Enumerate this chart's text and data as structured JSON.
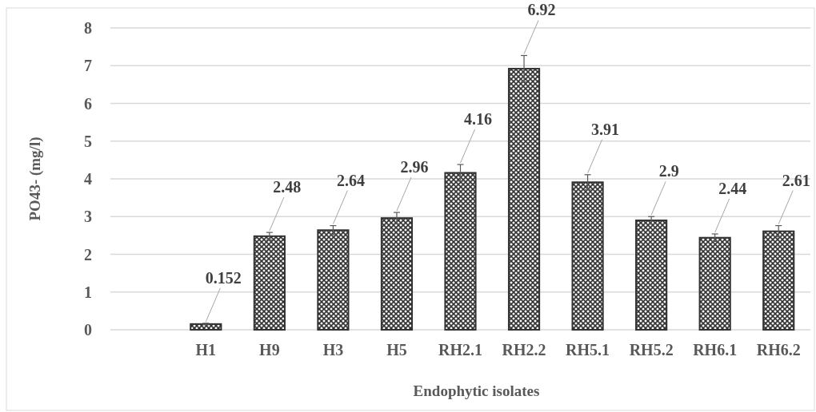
{
  "chart_data": {
    "type": "bar",
    "xlabel": "Endophytic isolates",
    "ylabel": "PO43- (mg/l)",
    "categories": [
      null,
      "H1",
      "H9",
      "H3",
      "H5",
      "RH2.1",
      "RH2.2",
      "RH5.1",
      "RH5.2",
      "RH6.1",
      "RH6.2"
    ],
    "values": [
      null,
      0.152,
      2.48,
      2.64,
      2.96,
      4.16,
      6.92,
      3.91,
      2.9,
      2.44,
      2.61
    ],
    "errors": [
      null,
      0.02,
      0.1,
      0.12,
      0.15,
      0.22,
      0.35,
      0.2,
      0.1,
      0.1,
      0.15
    ],
    "color": "#333333",
    "ylim": [
      0,
      8
    ],
    "yticks": [
      0,
      1,
      2,
      3,
      4,
      5,
      6,
      7,
      8
    ],
    "grid": "y",
    "data_labels": true
  }
}
